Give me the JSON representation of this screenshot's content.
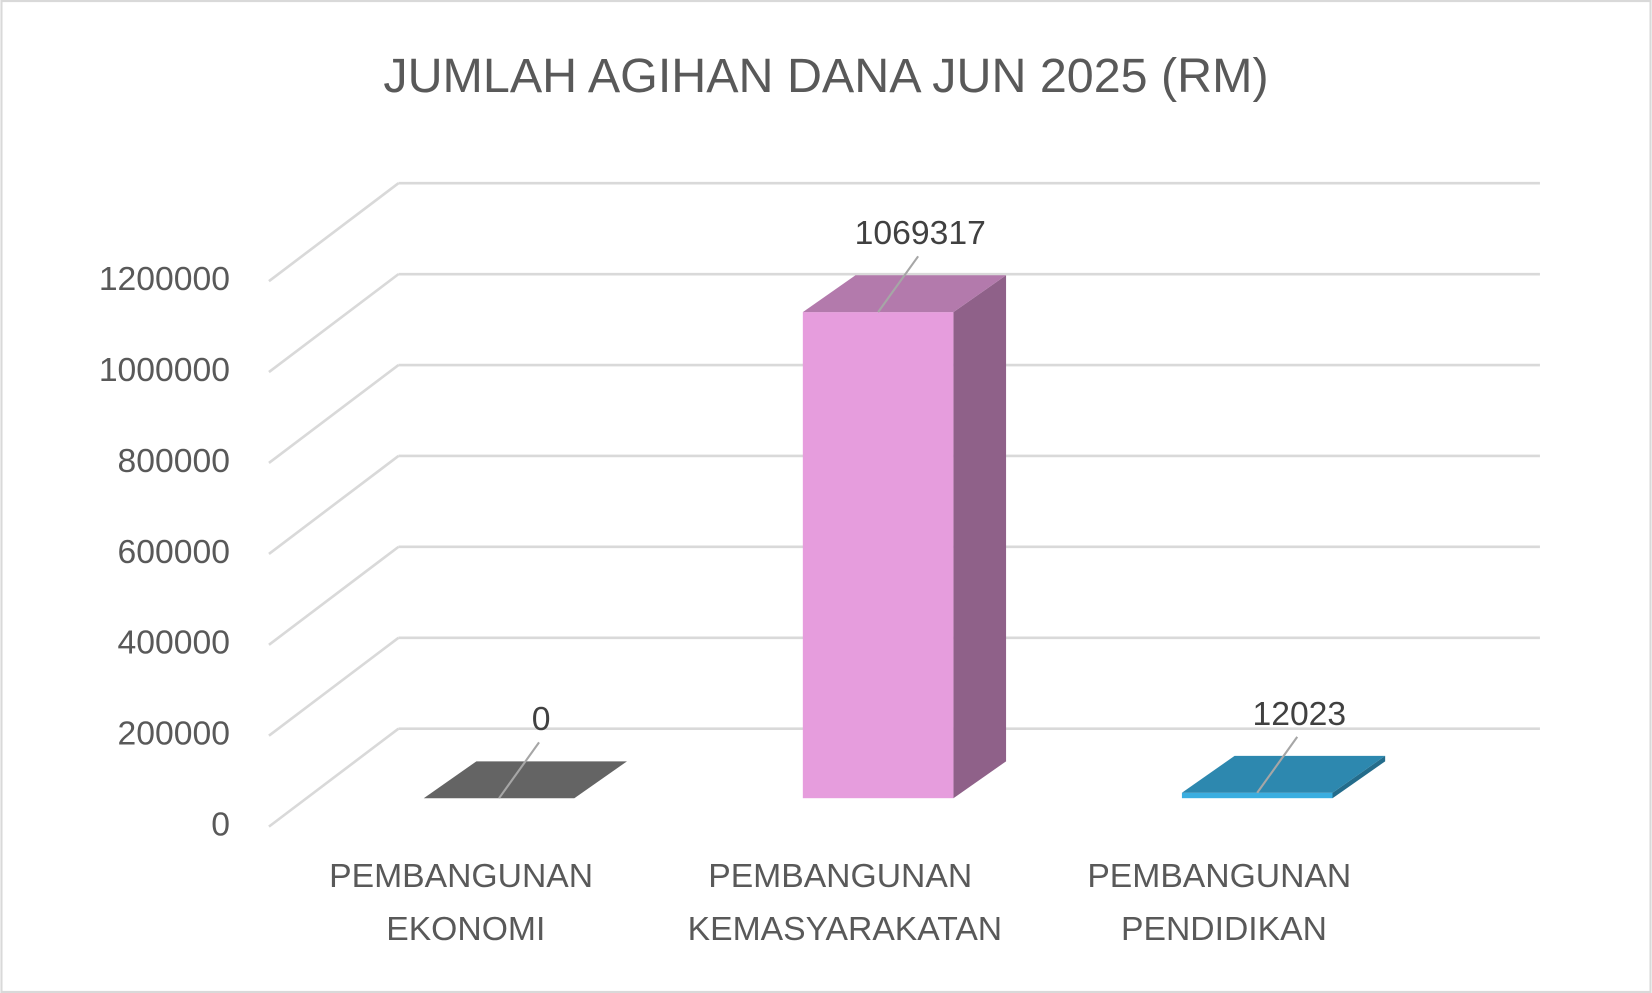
{
  "chart_data": {
    "type": "bar3d",
    "title": "JUMLAH AGIHAN DANA JUN 2025 (RM)",
    "categories": [
      "PEMBANGUNAN EKONOMI",
      "PEMBANGUNAN KEMASYARAKATAN",
      "PEMBANGUNAN PENDIDIKAN"
    ],
    "values": [
      0,
      1069317,
      12023
    ],
    "colors": [
      "#808080",
      "#e69ddd",
      "#3aaee0"
    ],
    "ylim": [
      0,
      1200000
    ],
    "yticks": [
      0,
      200000,
      400000,
      600000,
      800000,
      1000000,
      1200000
    ],
    "grid": true,
    "data_labels": true
  }
}
